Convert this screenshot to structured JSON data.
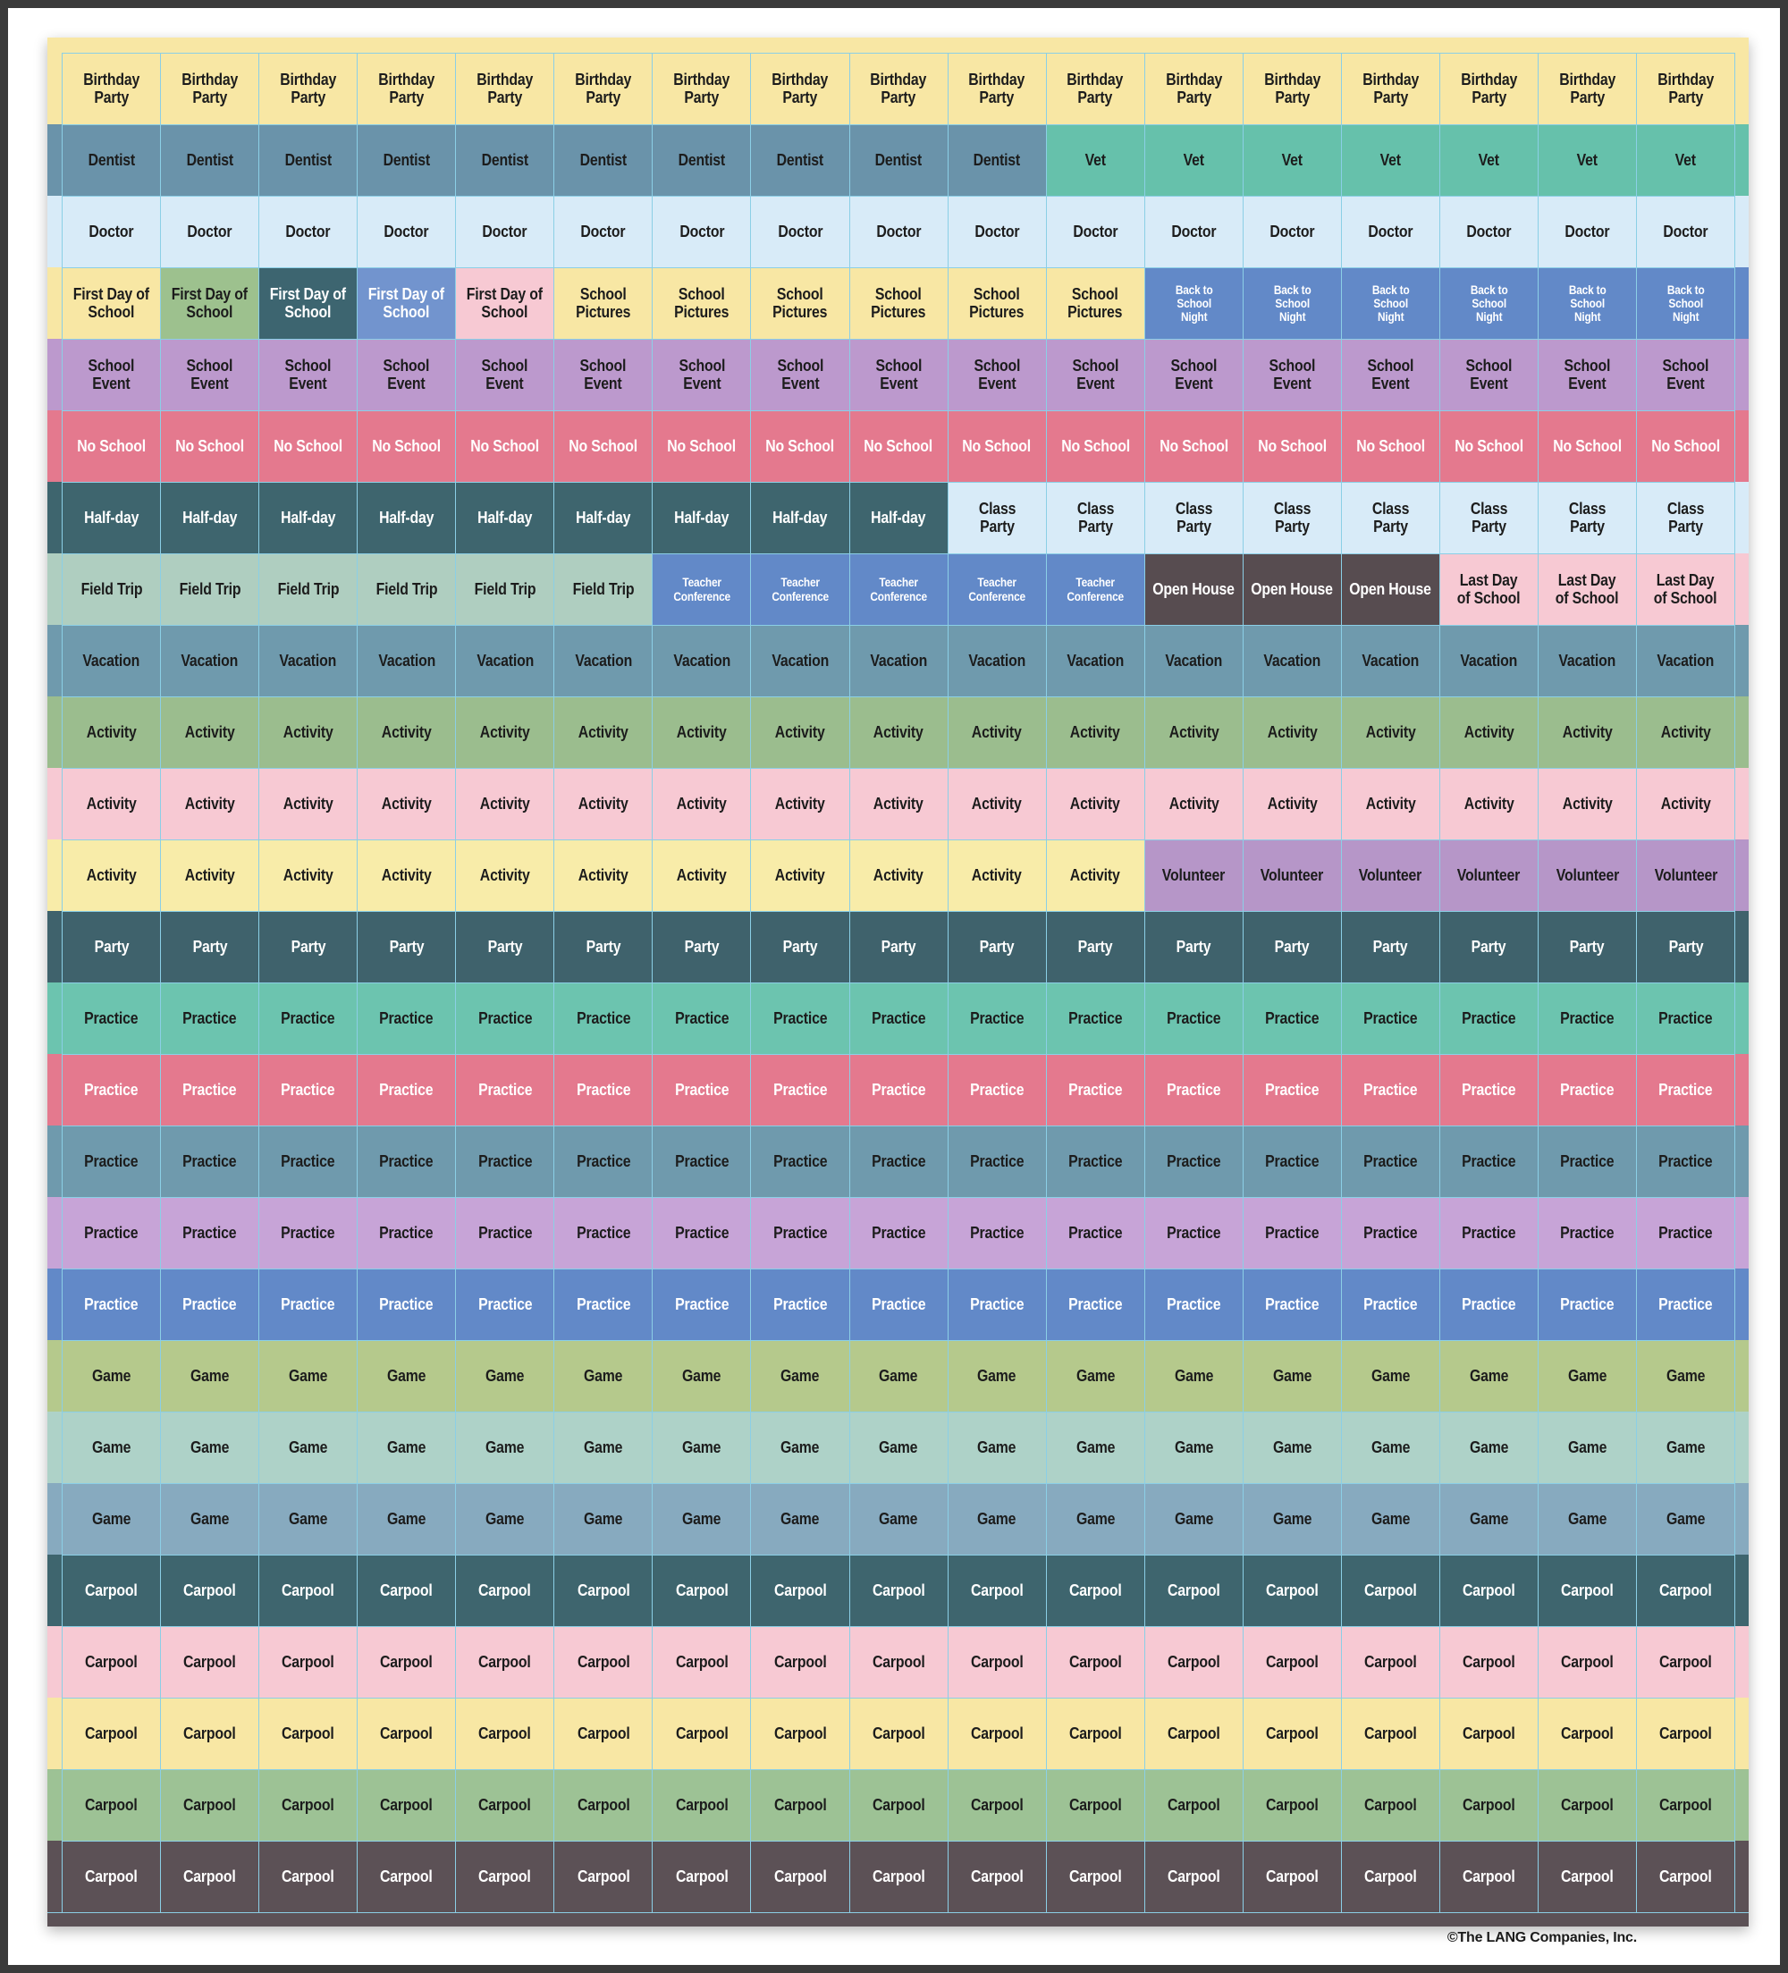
{
  "colors": {
    "frame": "#3A3A3A",
    "page_background": "#FFFFFF",
    "grid_line": "#8BCFE6",
    "sheet_top_band": "#F8E7A4",
    "sheet_bottom_band": "#5C5156"
  },
  "sheet": {
    "columns": 17,
    "rows": [
      {
        "segments": [
          {
            "label": "Birthday\nParty",
            "count": 17,
            "bg": "#F8E7A4",
            "fg": "#1C1C1C"
          }
        ]
      },
      {
        "segments": [
          {
            "label": "Dentist",
            "count": 10,
            "bg": "#6A93AA",
            "fg": "#1C1C1C"
          },
          {
            "label": "Vet",
            "count": 7,
            "bg": "#66C1AB",
            "fg": "#1C1C1C"
          }
        ]
      },
      {
        "segments": [
          {
            "label": "Doctor",
            "count": 17,
            "bg": "#D8EBF8",
            "fg": "#1C1C1C"
          }
        ]
      },
      {
        "segments": [
          {
            "label": "First Day of\nSchool",
            "count": 1,
            "bg": "#F8E7A4",
            "fg": "#1C1C1C"
          },
          {
            "label": "First Day of\nSchool",
            "count": 1,
            "bg": "#9DC18E",
            "fg": "#1C1C1C"
          },
          {
            "label": "First Day of\nSchool",
            "count": 1,
            "bg": "#3D6570",
            "fg": "#FFFFFF"
          },
          {
            "label": "First Day of\nSchool",
            "count": 1,
            "bg": "#7294CE",
            "fg": "#FFFFFF"
          },
          {
            "label": "First Day of\nSchool",
            "count": 1,
            "bg": "#F7C9D3",
            "fg": "#1C1C1C"
          },
          {
            "label": "School\nPictures",
            "count": 6,
            "bg": "#F8E7A4",
            "fg": "#1C1C1C"
          },
          {
            "label": "Back to\nSchool\nNight",
            "count": 6,
            "bg": "#6289C8",
            "fg": "#FFFFFF",
            "small_text": true
          }
        ]
      },
      {
        "segments": [
          {
            "label": "School\nEvent",
            "count": 17,
            "bg": "#BC99CD",
            "fg": "#1C1C1C"
          }
        ]
      },
      {
        "segments": [
          {
            "label": "No School",
            "count": 17,
            "bg": "#E4798E",
            "fg": "#FFFFFF"
          }
        ]
      },
      {
        "segments": [
          {
            "label": "Half-day",
            "count": 9,
            "bg": "#3E656E",
            "fg": "#FFFFFF"
          },
          {
            "label": "Class\nParty",
            "count": 8,
            "bg": "#D8EBF8",
            "fg": "#1C1C1C"
          }
        ]
      },
      {
        "segments": [
          {
            "label": "Field Trip",
            "count": 6,
            "bg": "#AFCEC0",
            "fg": "#1C1C1C"
          },
          {
            "label": "Teacher\nConference",
            "count": 5,
            "bg": "#6289C8",
            "fg": "#FFFFFF",
            "small_text": true
          },
          {
            "label": "Open House",
            "count": 3,
            "bg": "#574C50",
            "fg": "#FFFFFF"
          },
          {
            "label": "Last Day\nof School",
            "count": 3,
            "bg": "#F7C9D3",
            "fg": "#1C1C1C"
          }
        ]
      },
      {
        "segments": [
          {
            "label": "Vacation",
            "count": 17,
            "bg": "#6F9AAD",
            "fg": "#1C1C1C"
          }
        ]
      },
      {
        "segments": [
          {
            "label": "Activity",
            "count": 17,
            "bg": "#9BBD8E",
            "fg": "#1C1C1C"
          }
        ]
      },
      {
        "segments": [
          {
            "label": "Activity",
            "count": 17,
            "bg": "#F7C9D3",
            "fg": "#1C1C1C"
          }
        ]
      },
      {
        "segments": [
          {
            "label": "Activity",
            "count": 11,
            "bg": "#F8ECA9",
            "fg": "#1C1C1C"
          },
          {
            "label": "Volunteer",
            "count": 6,
            "bg": "#B696C8",
            "fg": "#1C1C1C"
          }
        ]
      },
      {
        "segments": [
          {
            "label": "Party",
            "count": 17,
            "bg": "#3F626C",
            "fg": "#FFFFFF"
          }
        ]
      },
      {
        "segments": [
          {
            "label": "Practice",
            "count": 17,
            "bg": "#6CC4AF",
            "fg": "#1C1C1C"
          }
        ]
      },
      {
        "segments": [
          {
            "label": "Practice",
            "count": 17,
            "bg": "#E4798E",
            "fg": "#FFFFFF"
          }
        ]
      },
      {
        "segments": [
          {
            "label": "Practice",
            "count": 17,
            "bg": "#6F9AAD",
            "fg": "#1C1C1C"
          }
        ]
      },
      {
        "segments": [
          {
            "label": "Practice",
            "count": 17,
            "bg": "#C7A4D7",
            "fg": "#1C1C1C"
          }
        ]
      },
      {
        "segments": [
          {
            "label": "Practice",
            "count": 17,
            "bg": "#6289C8",
            "fg": "#FFFFFF"
          }
        ]
      },
      {
        "segments": [
          {
            "label": "Game",
            "count": 17,
            "bg": "#B5C98C",
            "fg": "#1C1C1C"
          }
        ]
      },
      {
        "segments": [
          {
            "label": "Game",
            "count": 17,
            "bg": "#AED2C8",
            "fg": "#1C1C1C"
          }
        ]
      },
      {
        "segments": [
          {
            "label": "Game",
            "count": 17,
            "bg": "#87AABF",
            "fg": "#1C1C1C"
          }
        ]
      },
      {
        "segments": [
          {
            "label": "Carpool",
            "count": 17,
            "bg": "#3E656E",
            "fg": "#FFFFFF"
          }
        ]
      },
      {
        "segments": [
          {
            "label": "Carpool",
            "count": 17,
            "bg": "#F7C9D3",
            "fg": "#1C1C1C"
          }
        ]
      },
      {
        "segments": [
          {
            "label": "Carpool",
            "count": 17,
            "bg": "#F8E7A4",
            "fg": "#1C1C1C"
          }
        ]
      },
      {
        "segments": [
          {
            "label": "Carpool",
            "count": 17,
            "bg": "#9DC295",
            "fg": "#1C1C1C"
          }
        ]
      },
      {
        "segments": [
          {
            "label": "Carpool",
            "count": 17,
            "bg": "#5C5156",
            "fg": "#FFFFFF"
          }
        ]
      }
    ]
  },
  "footer": {
    "copyright": "©The LANG Companies, Inc."
  }
}
